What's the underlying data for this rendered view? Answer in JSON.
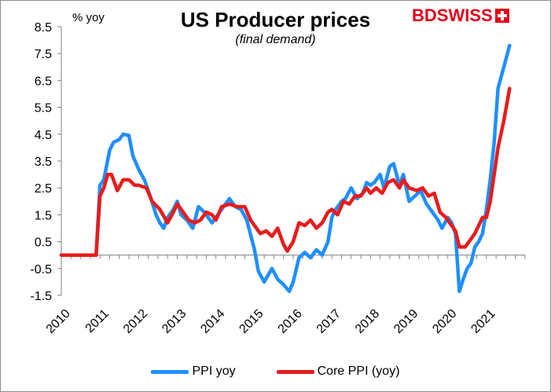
{
  "chart_data": {
    "type": "line",
    "title": "US Producer prices",
    "subtitle": "(final demand)",
    "ylabel": "% yoy",
    "ylim": [
      -1.5,
      8.5
    ],
    "yticks": [
      "8.5",
      "7.5",
      "6.5",
      "5.5",
      "4.5",
      "3.5",
      "2.5",
      "1.5",
      "0.5",
      "-0.5",
      "-1.5"
    ],
    "xlim": [
      2010,
      2022
    ],
    "xticks": [
      "2010",
      "2011",
      "2012",
      "2013",
      "2014",
      "2015",
      "2016",
      "2017",
      "2018",
      "2019",
      "2020",
      "2021"
    ],
    "grid": false,
    "legend_position": "bottom",
    "series": [
      {
        "name": "PPI yoy",
        "color": "#1f8fff",
        "points": [
          [
            2010.0,
            0.0
          ],
          [
            2010.9,
            0.0
          ],
          [
            2011.0,
            2.6
          ],
          [
            2011.1,
            2.8
          ],
          [
            2011.25,
            3.9
          ],
          [
            2011.35,
            4.2
          ],
          [
            2011.5,
            4.3
          ],
          [
            2011.6,
            4.5
          ],
          [
            2011.75,
            4.45
          ],
          [
            2011.85,
            3.7
          ],
          [
            2012.0,
            3.2
          ],
          [
            2012.15,
            2.8
          ],
          [
            2012.3,
            2.2
          ],
          [
            2012.45,
            1.5
          ],
          [
            2012.55,
            1.2
          ],
          [
            2012.65,
            1.0
          ],
          [
            2012.75,
            1.4
          ],
          [
            2012.9,
            1.7
          ],
          [
            2013.0,
            2.0
          ],
          [
            2013.1,
            1.5
          ],
          [
            2013.25,
            1.3
          ],
          [
            2013.4,
            1.0
          ],
          [
            2013.55,
            1.8
          ],
          [
            2013.7,
            1.6
          ],
          [
            2013.9,
            1.2
          ],
          [
            2014.0,
            1.4
          ],
          [
            2014.15,
            1.7
          ],
          [
            2014.35,
            2.1
          ],
          [
            2014.5,
            1.8
          ],
          [
            2014.65,
            1.7
          ],
          [
            2014.8,
            1.3
          ],
          [
            2015.0,
            0.2
          ],
          [
            2015.1,
            -0.6
          ],
          [
            2015.25,
            -1.0
          ],
          [
            2015.45,
            -0.5
          ],
          [
            2015.6,
            -0.9
          ],
          [
            2015.75,
            -1.1
          ],
          [
            2015.9,
            -1.35
          ],
          [
            2016.0,
            -1.0
          ],
          [
            2016.15,
            -0.1
          ],
          [
            2016.3,
            0.1
          ],
          [
            2016.45,
            -0.1
          ],
          [
            2016.6,
            0.2
          ],
          [
            2016.75,
            0.0
          ],
          [
            2016.9,
            0.5
          ],
          [
            2017.0,
            1.4
          ],
          [
            2017.1,
            1.7
          ],
          [
            2017.25,
            2.0
          ],
          [
            2017.35,
            2.1
          ],
          [
            2017.5,
            2.5
          ],
          [
            2017.65,
            2.1
          ],
          [
            2017.8,
            2.3
          ],
          [
            2017.9,
            2.7
          ],
          [
            2018.0,
            2.6
          ],
          [
            2018.1,
            2.7
          ],
          [
            2018.25,
            3.0
          ],
          [
            2018.35,
            2.5
          ],
          [
            2018.5,
            3.3
          ],
          [
            2018.6,
            3.4
          ],
          [
            2018.75,
            2.6
          ],
          [
            2018.85,
            3.0
          ],
          [
            2019.0,
            2.0
          ],
          [
            2019.15,
            2.2
          ],
          [
            2019.3,
            2.4
          ],
          [
            2019.45,
            1.9
          ],
          [
            2019.6,
            1.6
          ],
          [
            2019.75,
            1.3
          ],
          [
            2019.85,
            1.0
          ],
          [
            2020.0,
            1.4
          ],
          [
            2020.1,
            1.2
          ],
          [
            2020.2,
            0.8
          ],
          [
            2020.25,
            -0.3
          ],
          [
            2020.3,
            -1.35
          ],
          [
            2020.4,
            -0.9
          ],
          [
            2020.5,
            -0.5
          ],
          [
            2020.6,
            -0.3
          ],
          [
            2020.7,
            0.3
          ],
          [
            2020.8,
            0.5
          ],
          [
            2020.9,
            0.8
          ],
          [
            2021.0,
            1.7
          ],
          [
            2021.1,
            2.8
          ],
          [
            2021.2,
            4.2
          ],
          [
            2021.3,
            6.2
          ],
          [
            2021.45,
            7.0
          ],
          [
            2021.6,
            7.8
          ]
        ]
      },
      {
        "name": "Core PPI (yoy)",
        "color": "#e81c1c",
        "points": [
          [
            2010.0,
            0.0
          ],
          [
            2010.9,
            0.0
          ],
          [
            2011.0,
            2.2
          ],
          [
            2011.1,
            2.5
          ],
          [
            2011.2,
            3.0
          ],
          [
            2011.3,
            3.0
          ],
          [
            2011.45,
            2.4
          ],
          [
            2011.6,
            2.8
          ],
          [
            2011.75,
            2.8
          ],
          [
            2011.9,
            2.6
          ],
          [
            2012.0,
            2.6
          ],
          [
            2012.2,
            2.5
          ],
          [
            2012.35,
            2.0
          ],
          [
            2012.55,
            1.7
          ],
          [
            2012.75,
            1.2
          ],
          [
            2012.9,
            1.6
          ],
          [
            2013.0,
            1.9
          ],
          [
            2013.15,
            1.6
          ],
          [
            2013.3,
            1.3
          ],
          [
            2013.45,
            1.2
          ],
          [
            2013.6,
            1.3
          ],
          [
            2013.75,
            1.6
          ],
          [
            2013.9,
            1.5
          ],
          [
            2014.0,
            1.3
          ],
          [
            2014.15,
            1.8
          ],
          [
            2014.35,
            1.9
          ],
          [
            2014.55,
            1.8
          ],
          [
            2014.75,
            1.8
          ],
          [
            2014.9,
            1.3
          ],
          [
            2015.0,
            1.1
          ],
          [
            2015.15,
            0.8
          ],
          [
            2015.3,
            0.9
          ],
          [
            2015.45,
            0.7
          ],
          [
            2015.6,
            1.0
          ],
          [
            2015.75,
            0.4
          ],
          [
            2015.85,
            0.15
          ],
          [
            2016.0,
            0.5
          ],
          [
            2016.15,
            1.2
          ],
          [
            2016.3,
            1.1
          ],
          [
            2016.45,
            1.3
          ],
          [
            2016.6,
            1.0
          ],
          [
            2016.75,
            1.2
          ],
          [
            2016.9,
            1.6
          ],
          [
            2017.0,
            1.7
          ],
          [
            2017.15,
            1.5
          ],
          [
            2017.3,
            2.0
          ],
          [
            2017.45,
            1.9
          ],
          [
            2017.6,
            2.2
          ],
          [
            2017.75,
            2.2
          ],
          [
            2017.9,
            2.5
          ],
          [
            2018.0,
            2.3
          ],
          [
            2018.15,
            2.5
          ],
          [
            2018.3,
            2.3
          ],
          [
            2018.45,
            2.7
          ],
          [
            2018.6,
            2.8
          ],
          [
            2018.75,
            2.5
          ],
          [
            2018.85,
            2.8
          ],
          [
            2019.0,
            2.5
          ],
          [
            2019.2,
            2.4
          ],
          [
            2019.35,
            2.5
          ],
          [
            2019.5,
            2.2
          ],
          [
            2019.65,
            2.3
          ],
          [
            2019.8,
            1.6
          ],
          [
            2019.95,
            1.4
          ],
          [
            2020.1,
            1.1
          ],
          [
            2020.2,
            0.9
          ],
          [
            2020.3,
            0.3
          ],
          [
            2020.45,
            0.3
          ],
          [
            2020.6,
            0.6
          ],
          [
            2020.7,
            0.8
          ],
          [
            2020.8,
            1.1
          ],
          [
            2020.9,
            1.4
          ],
          [
            2021.0,
            1.4
          ],
          [
            2021.1,
            2.0
          ],
          [
            2021.2,
            3.0
          ],
          [
            2021.3,
            4.0
          ],
          [
            2021.45,
            5.0
          ],
          [
            2021.6,
            6.2
          ]
        ]
      }
    ]
  },
  "brand": {
    "logo": "BDSWISS",
    "logo_icon": "swiss-cross-icon",
    "logo_color": "#e2001a"
  },
  "legend": {
    "ppi_label": "PPI yoy",
    "core_label": "Core PPI (yoy)"
  }
}
